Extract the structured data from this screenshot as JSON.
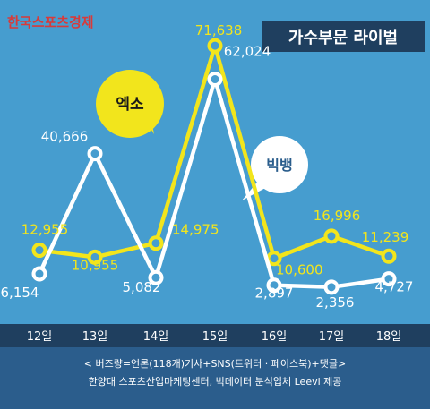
{
  "source_logo": "한국스포츠경제",
  "title": "가수부문 라이벌",
  "chart_data": {
    "type": "line",
    "categories": [
      "12일",
      "13일",
      "14일",
      "15일",
      "16일",
      "17일",
      "18일"
    ],
    "series": [
      {
        "name": "엑소",
        "color": "#f2e51c",
        "values": [
          12955,
          10955,
          14975,
          71638,
          10600,
          16996,
          11239
        ],
        "labels": [
          "12,955",
          "10,955",
          "14,975",
          "71,638",
          "10,600",
          "16,996",
          "11,239"
        ]
      },
      {
        "name": "빅뱅",
        "color": "#ffffff",
        "values": [
          6154,
          40666,
          5082,
          62024,
          2897,
          2356,
          4727
        ],
        "labels": [
          "6,154",
          "40,666",
          "5,082",
          "62,024",
          "2,897",
          "2,356",
          "4,727"
        ]
      }
    ],
    "ylim": [
      0,
      75000
    ],
    "grid": false,
    "legend": "callout bubbles"
  },
  "footnote1": "< 버즈량=언론(118개)기사+SNS(트위터 · 페이스북)+댓글>",
  "footnote2": "한양대 스포츠산업마케팅센터, 빅데이터 분석업체 Leevi 제공",
  "colors": {
    "background": "#469dcf",
    "axis_band": "#1f3f5f",
    "footer": "#2b5d8c",
    "yellow": "#f2e51c",
    "white": "#ffffff"
  }
}
